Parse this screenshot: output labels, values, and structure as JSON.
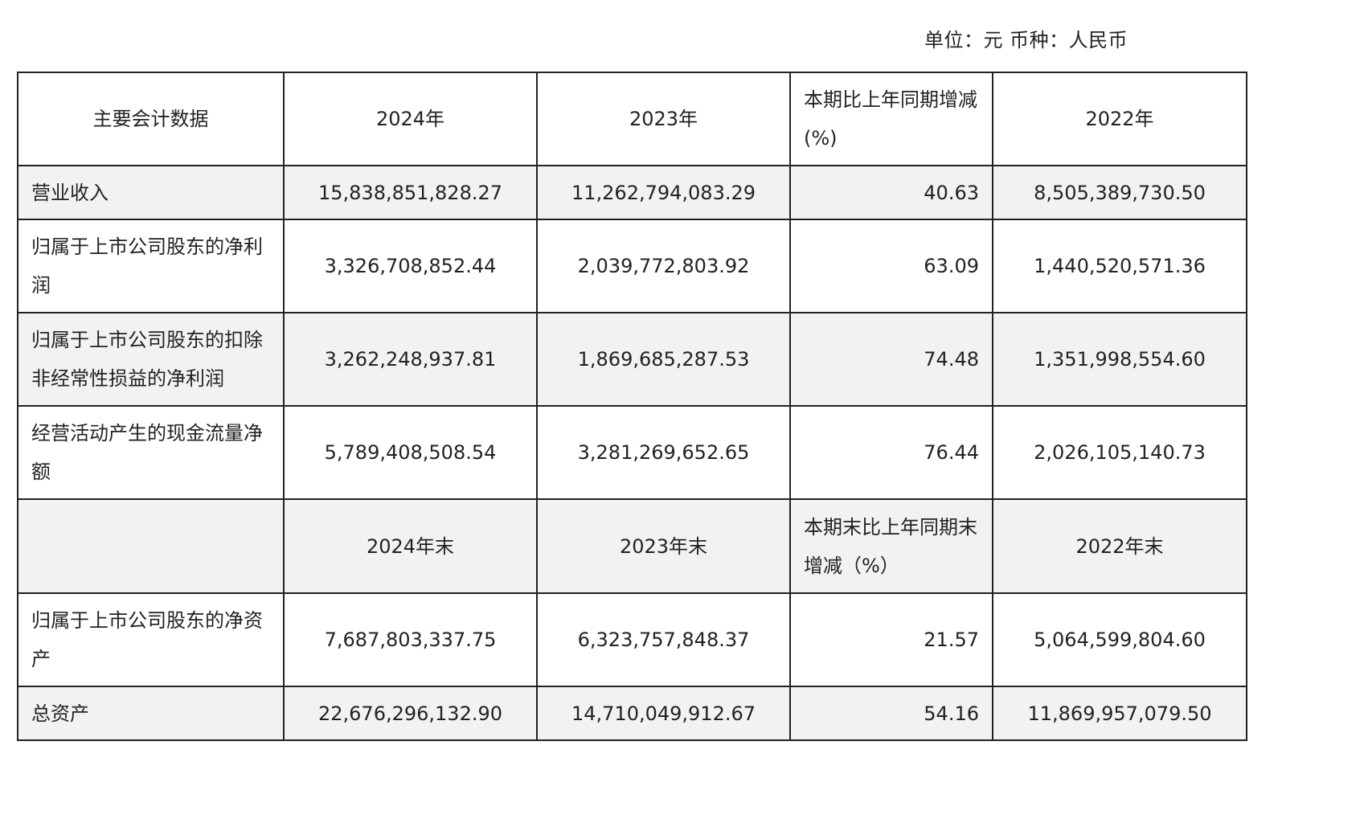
{
  "unit_line": "单位：元  币种：人民币",
  "header1": {
    "label": "主要会计数据",
    "y2024": "2024年",
    "y2023": "2023年",
    "change": "本期比上年同期增减(%)",
    "y2022": "2022年"
  },
  "header2": {
    "label": "",
    "y2024": "2024年末",
    "y2023": "2023年末",
    "change": "本期末比上年同期末增减（%）",
    "y2022": "2022年末"
  },
  "rows": [
    {
      "label": "营业收入",
      "y2024": "15,838,851,828.27",
      "y2023": "11,262,794,083.29",
      "change": "40.63",
      "y2022": "8,505,389,730.50"
    },
    {
      "label": "归属于上市公司股东的净利润",
      "y2024": "3,326,708,852.44",
      "y2023": "2,039,772,803.92",
      "change": "63.09",
      "y2022": "1,440,520,571.36"
    },
    {
      "label": "归属于上市公司股东的扣除非经常性损益的净利润",
      "y2024": "3,262,248,937.81",
      "y2023": "1,869,685,287.53",
      "change": "74.48",
      "y2022": "1,351,998,554.60"
    },
    {
      "label": "经营活动产生的现金流量净额",
      "y2024": "5,789,408,508.54",
      "y2023": "3,281,269,652.65",
      "change": "76.44",
      "y2022": "2,026,105,140.73"
    },
    {
      "label": "归属于上市公司股东的净资产",
      "y2024": "7,687,803,337.75",
      "y2023": "6,323,757,848.37",
      "change": "21.57",
      "y2022": "5,064,599,804.60"
    },
    {
      "label": "总资产",
      "y2024": "22,676,296,132.90",
      "y2023": "14,710,049,912.67",
      "change": "54.16",
      "y2022": "11,869,957,079.50"
    }
  ]
}
